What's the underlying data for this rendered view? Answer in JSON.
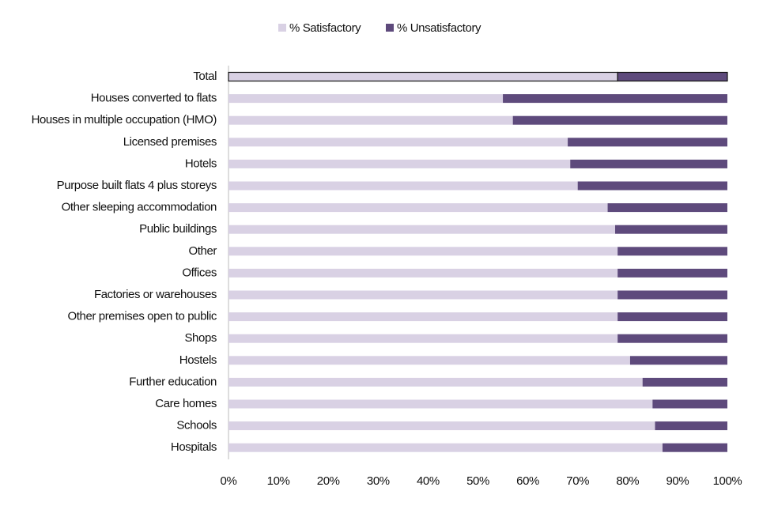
{
  "chart_data": {
    "type": "bar",
    "orientation": "horizontal",
    "stacked": true,
    "categories": [
      "Total",
      "Houses converted to flats",
      "Houses in multiple occupation (HMO)",
      "Licensed premises",
      "Hotels",
      "Purpose built flats 4 plus storeys",
      "Other sleeping accommodation",
      "Public buildings",
      "Other",
      "Offices",
      "Factories or warehouses",
      "Other premises open to public",
      "Shops",
      "Hostels",
      "Further education",
      "Care homes",
      "Schools",
      "Hospitals"
    ],
    "series": [
      {
        "name": "% Satisfactory",
        "color": "#d9d1e4",
        "values": [
          78,
          55,
          57,
          68,
          68.5,
          70,
          76,
          77.5,
          78,
          78,
          78,
          78,
          78,
          80.5,
          83,
          85,
          85.5,
          87
        ]
      },
      {
        "name": "% Unsatisfactory",
        "color": "#5e4a7c",
        "values": [
          22,
          45,
          43,
          32,
          31.5,
          30,
          24,
          22.5,
          22,
          22,
          22,
          22,
          22,
          19.5,
          17,
          15,
          14.5,
          13
        ]
      }
    ],
    "xlim": [
      0,
      100
    ],
    "xticks": [
      {
        "value": 0,
        "label": "0%"
      },
      {
        "value": 10,
        "label": "10%"
      },
      {
        "value": 20,
        "label": "20%"
      },
      {
        "value": 30,
        "label": "30%"
      },
      {
        "value": 40,
        "label": "40%"
      },
      {
        "value": 50,
        "label": "50%"
      },
      {
        "value": 60,
        "label": "60%"
      },
      {
        "value": 70,
        "label": "70%"
      },
      {
        "value": 80,
        "label": "80%"
      },
      {
        "value": 90,
        "label": "90%"
      },
      {
        "value": 100,
        "label": "100%"
      }
    ],
    "grid": false,
    "legend": "top"
  }
}
